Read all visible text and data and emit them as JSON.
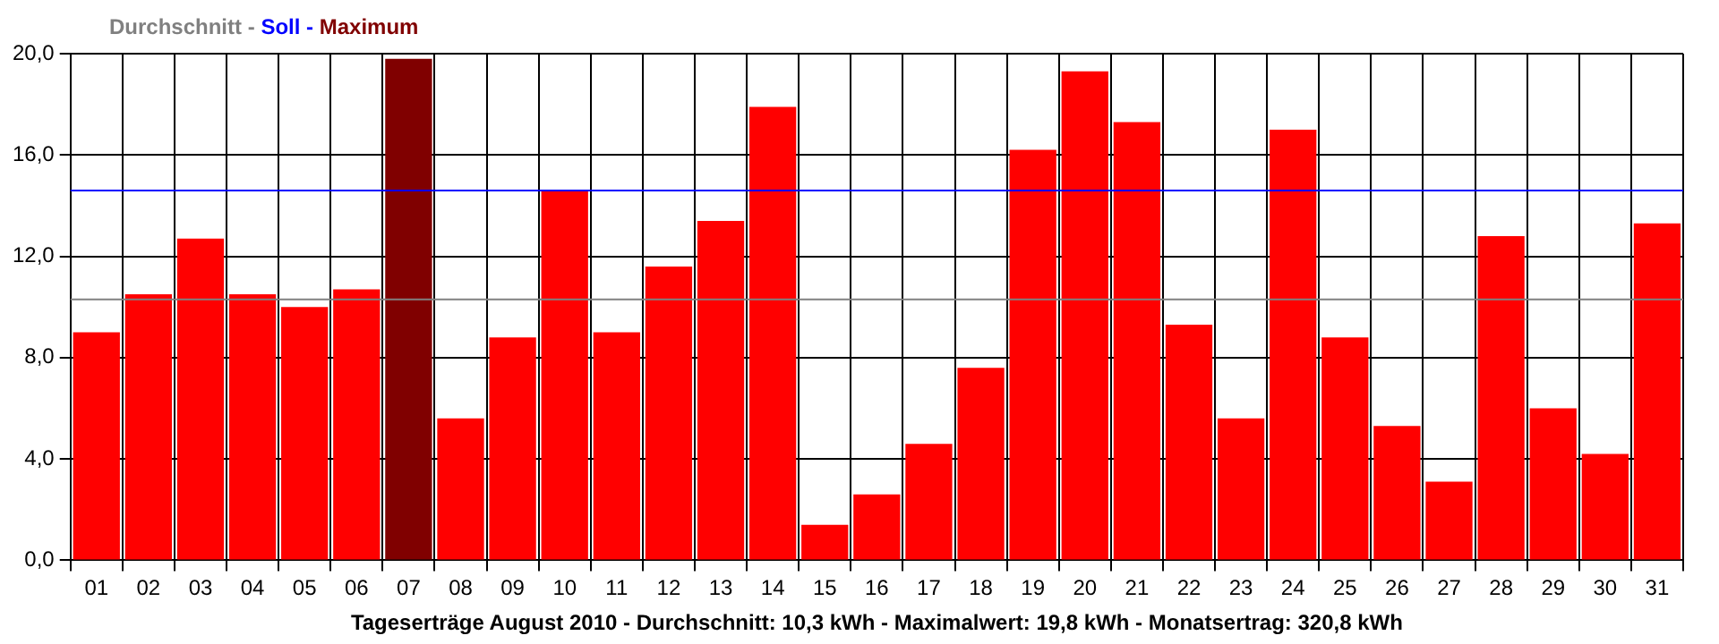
{
  "chart_data": {
    "type": "bar",
    "categories": [
      "01",
      "02",
      "03",
      "04",
      "05",
      "06",
      "07",
      "08",
      "09",
      "10",
      "11",
      "12",
      "13",
      "14",
      "15",
      "16",
      "17",
      "18",
      "19",
      "20",
      "21",
      "22",
      "23",
      "24",
      "25",
      "26",
      "27",
      "28",
      "29",
      "30",
      "31"
    ],
    "values": [
      9.0,
      10.5,
      12.7,
      10.5,
      10.0,
      10.7,
      19.8,
      5.6,
      8.8,
      14.6,
      9.0,
      11.6,
      13.4,
      17.9,
      1.4,
      2.6,
      4.6,
      7.6,
      16.2,
      19.3,
      17.3,
      9.3,
      5.6,
      17.0,
      8.8,
      5.3,
      3.1,
      12.8,
      6.0,
      4.2,
      13.3
    ],
    "colors": [
      "#ff0000",
      "#ff0000",
      "#ff0000",
      "#ff0000",
      "#ff0000",
      "#ff0000",
      "#800000",
      "#ff0000",
      "#ff0000",
      "#ff0000",
      "#ff0000",
      "#ff0000",
      "#ff0000",
      "#ff0000",
      "#ff0000",
      "#ff0000",
      "#ff0000",
      "#ff0000",
      "#ff0000",
      "#ff0000",
      "#ff0000",
      "#ff0000",
      "#ff0000",
      "#ff0000",
      "#ff0000",
      "#ff0000",
      "#ff0000",
      "#ff0000",
      "#ff0000",
      "#ff0000",
      "#ff0000"
    ],
    "ylim": [
      0,
      20
    ],
    "yticks": [
      {
        "value": 0,
        "label": "0,0"
      },
      {
        "value": 4,
        "label": "4,0"
      },
      {
        "value": 8,
        "label": "8,0"
      },
      {
        "value": 12,
        "label": "12,0"
      },
      {
        "value": 16,
        "label": "16,0"
      },
      {
        "value": 20,
        "label": "20,0"
      }
    ],
    "ref_lines": [
      {
        "axis": "y",
        "value": 10.3,
        "color": "#808080"
      },
      {
        "axis": "y",
        "value": 14.6,
        "color": "#0000ff"
      }
    ],
    "legend_title": "Durchschnitt - Soll - Maximum",
    "xlabel": "Tageserträge August 2010 - Durchschnitt: 10,3 kWh - Maximalwert: 19,8 kWh - Monatsertrag: 320,8 kWh",
    "grid": true,
    "legend": false
  }
}
